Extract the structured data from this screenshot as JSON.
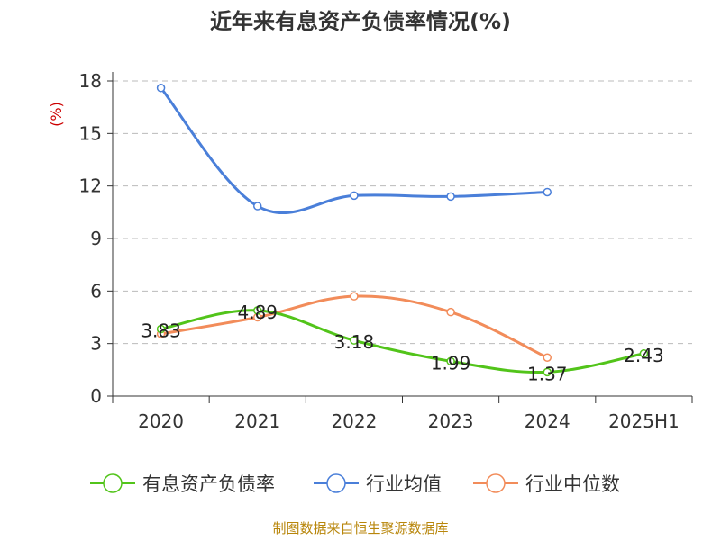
{
  "title": "近年来有息资产负债率情况(%)",
  "source": "制图数据来自恒生聚源数据库",
  "chart_data": {
    "type": "line",
    "title": "近年来有息资产负债率情况(%)",
    "ylabel": "(%)",
    "xlabel": "",
    "categories": [
      "2020",
      "2021",
      "2022",
      "2023",
      "2024",
      "2025H1"
    ],
    "ylim": [
      0,
      18
    ],
    "yticks": [
      0,
      3,
      6,
      9,
      12,
      15,
      18
    ],
    "grid": true,
    "legend_position": "bottom",
    "series": [
      {
        "name": "有息资产负债率",
        "color": "#52c41a",
        "values": [
          3.83,
          4.89,
          3.18,
          1.99,
          1.37,
          2.43
        ],
        "labels": [
          "3.83",
          "4.89",
          "3.18",
          "1.99",
          "1.37",
          "2.43"
        ]
      },
      {
        "name": "行业均值",
        "color": "#4a7fd9",
        "values": [
          17.6,
          10.85,
          11.45,
          11.4,
          11.65,
          null
        ]
      },
      {
        "name": "行业中位数",
        "color": "#f28c5a",
        "values": [
          3.55,
          4.5,
          5.7,
          4.8,
          2.2,
          null
        ]
      }
    ]
  }
}
